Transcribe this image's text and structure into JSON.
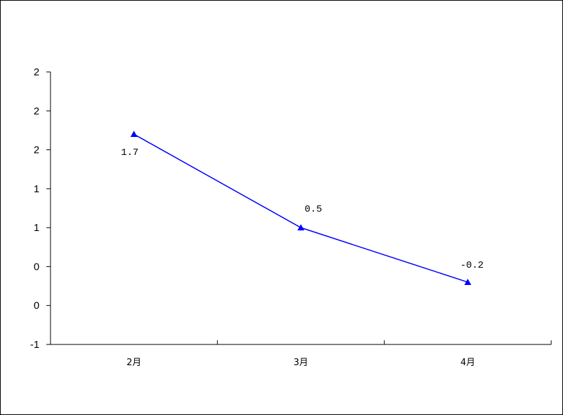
{
  "chart_data": {
    "type": "line",
    "categories": [
      "2月",
      "3月",
      "4月"
    ],
    "values": [
      1.7,
      0.5,
      -0.2
    ],
    "data_labels": [
      "1.7",
      "0.5",
      "-0.2"
    ],
    "ylim": [
      -1,
      2.5
    ],
    "y_tick_values": [
      -1,
      -0.5,
      0,
      0.5,
      1,
      1.5,
      2,
      2.5
    ],
    "y_tick_labels": [
      "-1",
      "0",
      "0",
      "1",
      "1",
      "2",
      "2",
      "2"
    ],
    "title": "",
    "xlabel": "",
    "ylabel": "",
    "grid": false,
    "legend": "none",
    "line_color": "#0000ff",
    "marker": "triangle"
  }
}
